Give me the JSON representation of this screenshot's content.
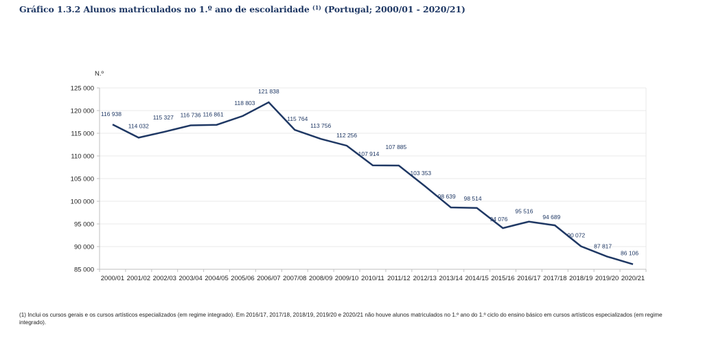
{
  "title": {
    "main": "Gráfico 1.3.2 Alunos matriculados no 1.º ano de escolaridade",
    "note_ref": "(1)",
    "suffix": "(Portugal; 2000/01 - 2020/21)"
  },
  "footnote": "(1) Inclui os cursos gerais e os cursos artísticos especializados (em regime integrado). Em 2016/17, 2017/18, 2018/19, 2019/20 e 2020/21 não houve alunos matriculados no 1.º ano do 1.º ciclo do ensino básico em cursos artísticos especializados (em regime integrado).",
  "colors": {
    "line": "#1f3864",
    "label": "#1f3864",
    "axis": "#bfbfbf",
    "grid": "#e8e8e8",
    "tick_text": "#222222"
  },
  "chart_data": {
    "type": "line",
    "title": "Gráfico 1.3.2 Alunos matriculados no 1.º ano de escolaridade (1) (Portugal; 2000/01 - 2020/21)",
    "xlabel": "",
    "ylabel": "N.º",
    "ylim": [
      85000,
      125000
    ],
    "y_ticks": [
      85000,
      90000,
      95000,
      100000,
      105000,
      110000,
      115000,
      120000,
      125000
    ],
    "y_tick_labels": [
      "85 000",
      "90 000",
      "95 000",
      "100 000",
      "105 000",
      "110 000",
      "115 000",
      "120 000",
      "125 000"
    ],
    "grid": true,
    "legend": "none",
    "categories": [
      "2000/01",
      "2001/02",
      "2002/03",
      "2003/04",
      "2004/05",
      "2005/06",
      "2006/07",
      "2007/08",
      "2008/09",
      "2009/10",
      "2010/11",
      "2011/12",
      "2012/13",
      "2013/14",
      "2014/15",
      "2015/16",
      "2016/17",
      "2017/18",
      "2018/19",
      "2019/20",
      "2020/21"
    ],
    "series": [
      {
        "name": "Alunos matriculados no 1.º ano",
        "values": [
          116938,
          114032,
          115327,
          116736,
          116861,
          118803,
          121838,
          115764,
          113756,
          112256,
          107914,
          107885,
          103353,
          98639,
          98514,
          94076,
          95516,
          94689,
          90072,
          87817,
          86106
        ],
        "labels": [
          "116 938",
          "114 032",
          "115 327",
          "116 736",
          "116 861",
          "118 803",
          "121 838",
          "115 764",
          "113 756",
          "112 256",
          "107 914",
          "107 885",
          "103 353",
          "98 639",
          "98 514",
          "94 076",
          "95 516",
          "94 689",
          "90 072",
          "87 817",
          "86 106"
        ]
      }
    ]
  }
}
